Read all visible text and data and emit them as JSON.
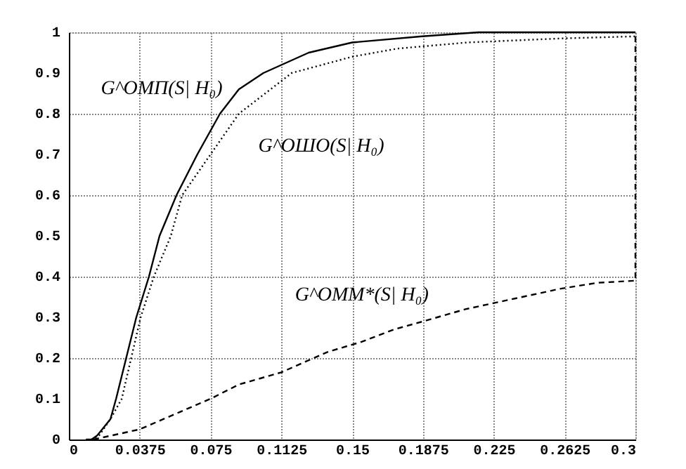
{
  "chart_data": {
    "type": "line",
    "xlim": [
      0,
      0.3
    ],
    "ylim": [
      0,
      1
    ],
    "xticks": [
      0,
      0.0375,
      0.075,
      0.1125,
      0.15,
      0.1875,
      0.225,
      0.2625,
      0.3
    ],
    "yticks": [
      0,
      0.1,
      0.2,
      0.3,
      0.4,
      0.5,
      0.6,
      0.7,
      0.8,
      0.9,
      1
    ],
    "grid": true,
    "series": [
      {
        "color": "#000000",
        "line_style": "solid",
        "x": [
          0.009,
          0.012,
          0.015,
          0.022,
          0.025,
          0.0357,
          0.0424,
          0.048,
          0.057,
          0.068,
          0.08,
          0.09,
          0.103,
          0.127,
          0.15,
          0.187,
          0.217,
          0.26,
          0.3
        ],
        "values": [
          0,
          0,
          0.01,
          0.05,
          0.1,
          0.3,
          0.4,
          0.5,
          0.6,
          0.7,
          0.8,
          0.86,
          0.9,
          0.95,
          0.975,
          0.99,
          1,
          1,
          1
        ]
      },
      {
        "color": "#000000",
        "line_style": "dotted",
        "x": [
          0.012,
          0.016,
          0.022,
          0.028,
          0.033,
          0.038,
          0.045,
          0.054,
          0.06,
          0.075,
          0.09,
          0.118,
          0.15,
          0.174,
          0.211,
          0.261,
          0.3
        ],
        "values": [
          0,
          0.01,
          0.05,
          0.1,
          0.2,
          0.3,
          0.4,
          0.5,
          0.6,
          0.7,
          0.8,
          0.9,
          0.94,
          0.96,
          0.975,
          0.985,
          0.99
        ]
      },
      {
        "color": "#000000",
        "line_style": "dashed",
        "x": [
          0.013,
          0.0375,
          0.075,
          0.09,
          0.1125,
          0.137,
          0.155,
          0.172,
          0.1875,
          0.21,
          0.225,
          0.24,
          0.26,
          0.28,
          0.3,
          0.3
        ],
        "values": [
          0,
          0.025,
          0.1,
          0.135,
          0.165,
          0.215,
          0.24,
          0.27,
          0.29,
          0.32,
          0.335,
          0.35,
          0.37,
          0.385,
          0.39,
          1
        ]
      }
    ],
    "annotations": [
      {
        "text": "G^ОМП(S| H₀)",
        "x": 0.0774,
        "y": 0.78
      },
      {
        "text": "G^ОШО(S| H₀)",
        "x": 0.078,
        "y": 0.72
      },
      {
        "text": "G^ОММ*(S| H₀)",
        "x": 0.17,
        "y": 0.276
      }
    ]
  }
}
